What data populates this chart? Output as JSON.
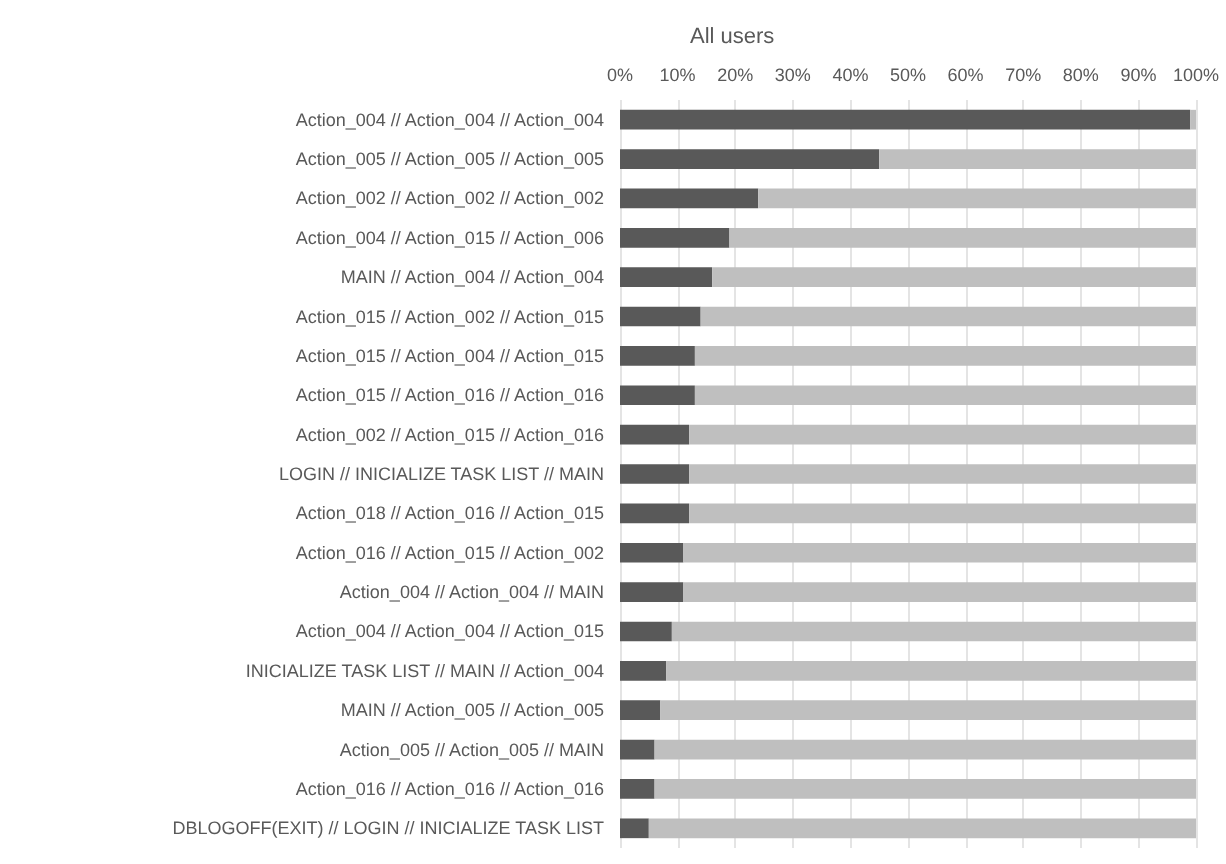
{
  "chart_data": {
    "type": "bar",
    "title": "All users",
    "orientation": "horizontal",
    "stacked": true,
    "categories": [
      "Action_004 // Action_004 // Action_004",
      "Action_005 // Action_005 // Action_005",
      "Action_002 // Action_002 // Action_002",
      "Action_004 // Action_015 // Action_006",
      "MAIN // Action_004 // Action_004",
      "Action_015 // Action_002 // Action_015",
      "Action_015 // Action_004 // Action_015",
      "Action_015 // Action_016 // Action_016",
      "Action_002 // Action_015 // Action_016",
      "LOGIN // INICIALIZE TASK LIST // MAIN",
      "Action_018 // Action_016 // Action_015",
      "Action_016 // Action_015 // Action_002",
      "Action_004 // Action_004 // MAIN",
      "Action_004 // Action_004 // Action_015",
      "INICIALIZE TASK LIST // MAIN // Action_004",
      "MAIN // Action_005 // Action_005",
      "Action_005 // Action_005 // MAIN",
      "Action_016 // Action_016 // Action_016",
      "DBLOGOFF(EXIT) // LOGIN // INICIALIZE TASK LIST"
    ],
    "series": [
      {
        "color": "#595959",
        "values": [
          99,
          45,
          24,
          19,
          16,
          14,
          13,
          13,
          12,
          12,
          12,
          11,
          11,
          9,
          8,
          7,
          6,
          6,
          5
        ]
      },
      {
        "color": "#bfbfbf",
        "values": [
          1,
          55,
          76,
          81,
          84,
          86,
          87,
          87,
          88,
          88,
          88,
          89,
          89,
          91,
          92,
          93,
          94,
          94,
          95
        ]
      }
    ],
    "xlim": [
      0,
      100
    ],
    "xticks": [
      {
        "value": 0,
        "label": "0%"
      },
      {
        "value": 10,
        "label": "10%"
      },
      {
        "value": 20,
        "label": "20%"
      },
      {
        "value": 30,
        "label": "30%"
      },
      {
        "value": 40,
        "label": "40%"
      },
      {
        "value": 50,
        "label": "50%"
      },
      {
        "value": 60,
        "label": "60%"
      },
      {
        "value": 70,
        "label": "70%"
      },
      {
        "value": 80,
        "label": "80%"
      },
      {
        "value": 90,
        "label": "90%"
      },
      {
        "value": 100,
        "label": "100%"
      }
    ],
    "grid": "x"
  }
}
